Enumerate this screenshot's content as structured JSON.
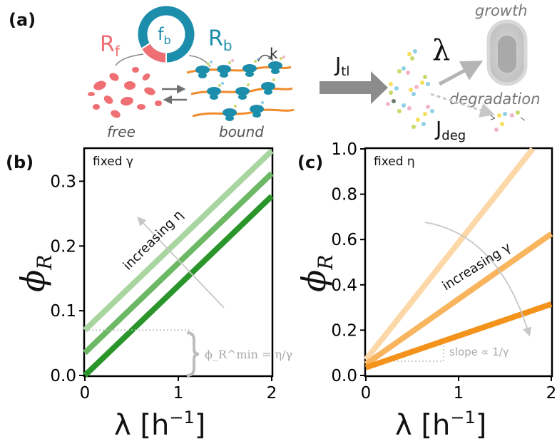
{
  "panel_a": {
    "label": "(a)",
    "rf_main": "R",
    "rf_sub": "f",
    "rb_main": "R",
    "rb_sub": "b",
    "fb_main": "f",
    "fb_sub": "b",
    "k_label": "k",
    "free_label": "free",
    "bound_label": "bound",
    "jtl_main": "J",
    "jtl_sub": "tl",
    "lambda_label": "λ",
    "growth_label": "growth",
    "degradation_label": "degradation",
    "jdeg_main": "J",
    "jdeg_sub": "deg",
    "colors": {
      "free": "#ef6f73",
      "bound": "#1c8dab",
      "mrna": "#f08a2a",
      "arrow": "#9a9a9a"
    }
  },
  "chart_data": [
    {
      "panel": "(b)",
      "type": "line",
      "annotation": "fixed γ",
      "ylabel_main": "ϕ",
      "ylabel_sub": "R",
      "xlabel_main": "λ [h",
      "xlabel_sup": "−1",
      "xlabel_end": "]",
      "xlim": [
        0,
        2
      ],
      "ylim": [
        0,
        0.35
      ],
      "xticks": [
        0,
        1,
        2
      ],
      "xtick_labels": [
        "0",
        "1",
        "2"
      ],
      "yticks": [
        0.0,
        0.1,
        0.2,
        0.3
      ],
      "ytick_labels": [
        "0.0",
        "0.1",
        "0.2",
        "0.3"
      ],
      "series": [
        {
          "x": [
            0,
            2
          ],
          "y": [
            0.07,
            0.347
          ],
          "color": "#a8d5a0"
        },
        {
          "x": [
            0,
            2
          ],
          "y": [
            0.035,
            0.312
          ],
          "color": "#6cb864"
        },
        {
          "x": [
            0,
            2
          ],
          "y": [
            0.0,
            0.277
          ],
          "color": "#2a952a"
        }
      ],
      "arrow_text": "increasing η",
      "brace_text": "ϕ_R^min = η/γ",
      "min_marker": {
        "x": [
          0,
          1.15
        ],
        "y": 0.07
      }
    },
    {
      "panel": "(c)",
      "type": "line",
      "annotation": "fixed η",
      "ylabel_main": "ϕ",
      "ylabel_sub": "R",
      "xlabel_main": "λ [h",
      "xlabel_sup": "−1",
      "xlabel_end": "]",
      "xlim": [
        0,
        2
      ],
      "ylim": [
        0,
        1.0
      ],
      "xticks": [
        0,
        1,
        2
      ],
      "xtick_labels": [
        "0",
        "1",
        "2"
      ],
      "yticks": [
        0.0,
        0.2,
        0.4,
        0.6,
        0.8,
        1.0
      ],
      "ytick_labels": [
        "0.0",
        "0.2",
        "0.4",
        "0.6",
        "0.8",
        "1.0"
      ],
      "series": [
        {
          "x": [
            0,
            1.8
          ],
          "y": [
            0.07,
            1.0
          ],
          "color": "#fcd8a8"
        },
        {
          "x": [
            0,
            2
          ],
          "y": [
            0.05,
            0.625
          ],
          "color": "#f9b45e"
        },
        {
          "x": [
            0,
            2
          ],
          "y": [
            0.035,
            0.315
          ],
          "color": "#f3931b"
        }
      ],
      "arrow_text": "increasing γ",
      "slope_text": "slope ∝ 1/γ"
    }
  ]
}
